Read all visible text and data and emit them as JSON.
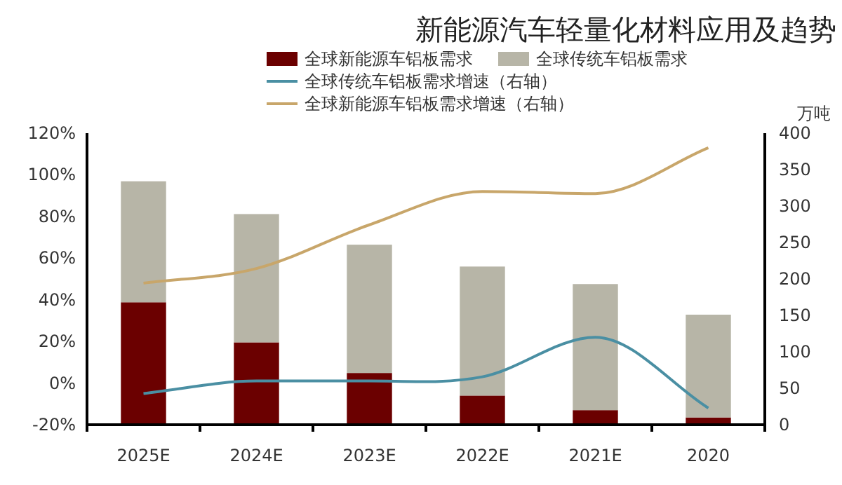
{
  "chart_data": {
    "type": "bar",
    "title": "新能源汽车轻量化材料应用及趋势",
    "stacked": true,
    "legend": "top",
    "grid": false,
    "y2label": "万吨",
    "categories": [
      "2025E",
      "2024E",
      "2023E",
      "2022E",
      "2021E",
      "2020"
    ],
    "ylim": [
      -20,
      120
    ],
    "yticks": [
      {
        "value": -20,
        "label": "-20%"
      },
      {
        "value": 0,
        "label": "0%"
      },
      {
        "value": 20,
        "label": "20%"
      },
      {
        "value": 40,
        "label": "40%"
      },
      {
        "value": 60,
        "label": "60%"
      },
      {
        "value": 80,
        "label": "80%"
      },
      {
        "value": 100,
        "label": "100%"
      },
      {
        "value": 120,
        "label": "120%"
      }
    ],
    "y2lim": [
      0,
      400
    ],
    "y2ticks": [
      0,
      50,
      100,
      150,
      200,
      250,
      300,
      350,
      400
    ],
    "series": [
      {
        "name": "全球新能源车铝板需求",
        "color": "#6b0000",
        "axis": "y2",
        "values": [
          168,
          113,
          71,
          40,
          20,
          10
        ]
      },
      {
        "name": "全球传统车铝板需求",
        "color": "#b7b5a7",
        "axis": "y2",
        "values": [
          166,
          176,
          176,
          177,
          173,
          141
        ]
      },
      {
        "name": "全球传统车铝板需求增速（右轴）",
        "type": "line",
        "color": "#4a8fa3",
        "values": [
          -5,
          1,
          1,
          3,
          22,
          -12
        ]
      },
      {
        "name": "全球新能源车铝板需求增速（右轴）",
        "type": "line",
        "color": "#c8a66a",
        "values": [
          48,
          55,
          76,
          92,
          91,
          113
        ]
      }
    ]
  }
}
